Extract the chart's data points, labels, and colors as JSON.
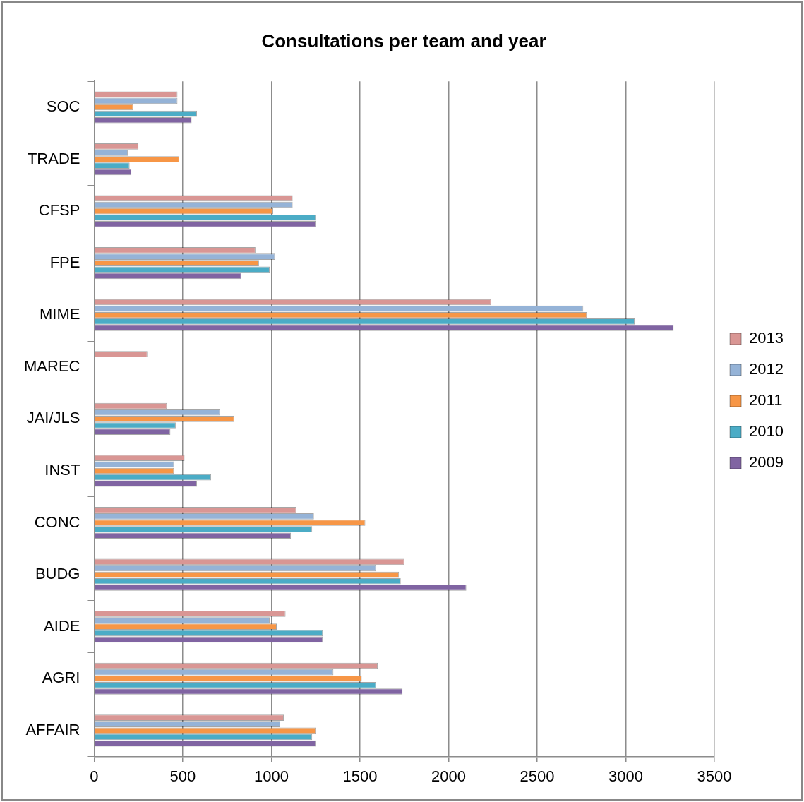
{
  "chart_data": {
    "type": "bar",
    "orientation": "horizontal",
    "title": "Consultations per team and year",
    "categories": [
      "SOC",
      "TRADE",
      "CFSP",
      "FPE",
      "MIME",
      "MAREC",
      "JAI/JLS",
      "INST",
      "CONC",
      "BUDG",
      "AIDE",
      "AGRI",
      "AFFAIR"
    ],
    "series": [
      {
        "name": "2013",
        "color": "#d99694",
        "values": [
          470,
          250,
          1120,
          910,
          2240,
          300,
          410,
          510,
          1140,
          1750,
          1080,
          1600,
          1070
        ]
      },
      {
        "name": "2012",
        "color": "#95b3d7",
        "values": [
          470,
          190,
          1120,
          1020,
          2760,
          null,
          710,
          450,
          1240,
          1590,
          990,
          1350,
          1050
        ]
      },
      {
        "name": "2011",
        "color": "#f79646",
        "values": [
          220,
          480,
          1010,
          930,
          2780,
          null,
          790,
          450,
          1530,
          1720,
          1030,
          1510,
          1250
        ]
      },
      {
        "name": "2010",
        "color": "#4bacc6",
        "values": [
          580,
          200,
          1250,
          990,
          3050,
          null,
          460,
          660,
          1230,
          1730,
          1290,
          1590,
          1230
        ]
      },
      {
        "name": "2009",
        "color": "#8064a2",
        "values": [
          550,
          210,
          1250,
          830,
          3270,
          null,
          430,
          580,
          1110,
          2100,
          1290,
          1740,
          1250
        ]
      }
    ],
    "xlim": [
      0,
      3500
    ],
    "xticks": [
      0,
      500,
      1000,
      1500,
      2000,
      2500,
      3000,
      3500
    ],
    "grid": "x",
    "legend": "right"
  }
}
